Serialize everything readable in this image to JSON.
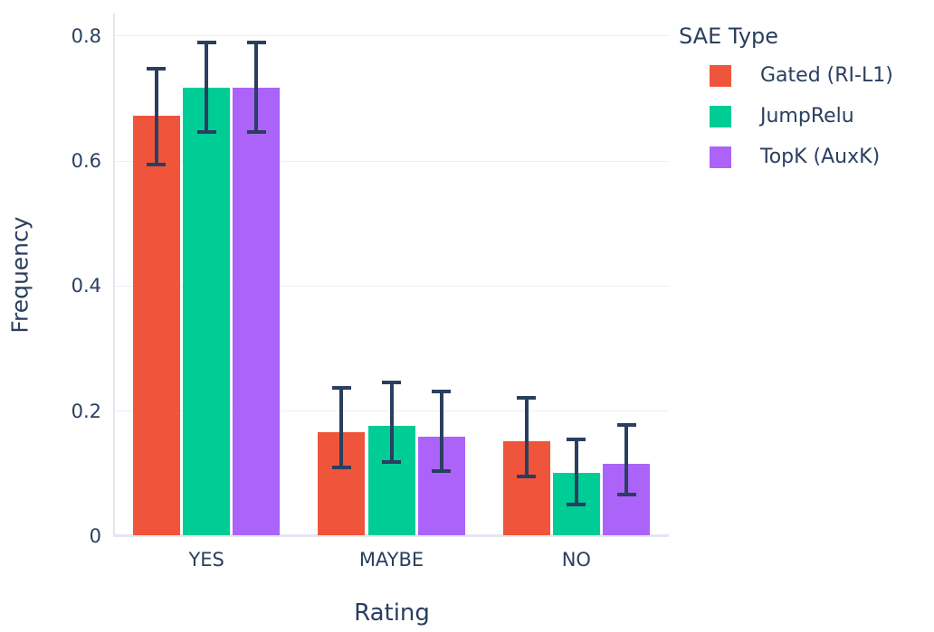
{
  "chart_data": {
    "type": "bar",
    "title": "",
    "xlabel": "Rating",
    "ylabel": "Frequency",
    "legend_title": "SAE Type",
    "legend_position": "top-right",
    "grid": true,
    "categories": [
      "YES",
      "MAYBE",
      "NO"
    ],
    "ylim": [
      0,
      0.836
    ],
    "yticks": [
      {
        "v": 0,
        "label": "0"
      },
      {
        "v": 0.2,
        "label": "0.2"
      },
      {
        "v": 0.4,
        "label": "0.4"
      },
      {
        "v": 0.6,
        "label": "0.6"
      },
      {
        "v": 0.8,
        "label": "0.8"
      }
    ],
    "series": [
      {
        "name": "Gated (RI-L1)",
        "color": "#EF553B",
        "values": [
          0.672,
          0.167,
          0.152
        ],
        "err_high": [
          0.748,
          0.237,
          0.222
        ],
        "err_low": [
          0.595,
          0.11,
          0.095
        ]
      },
      {
        "name": "JumpRelu",
        "color": "#00CC96",
        "values": [
          0.718,
          0.176,
          0.101
        ],
        "err_high": [
          0.79,
          0.246,
          0.155
        ],
        "err_low": [
          0.647,
          0.119,
          0.05
        ]
      },
      {
        "name": "TopK (AuxK)",
        "color": "#AB63FA",
        "values": [
          0.718,
          0.159,
          0.115
        ],
        "err_high": [
          0.79,
          0.231,
          0.178
        ],
        "err_low": [
          0.647,
          0.104,
          0.066
        ]
      }
    ],
    "colors": {
      "text": "#2a3f5f",
      "error_bar": "#2a3f5f",
      "grid": "#EBF0F8",
      "axis_line": "#E3E7EF"
    }
  }
}
